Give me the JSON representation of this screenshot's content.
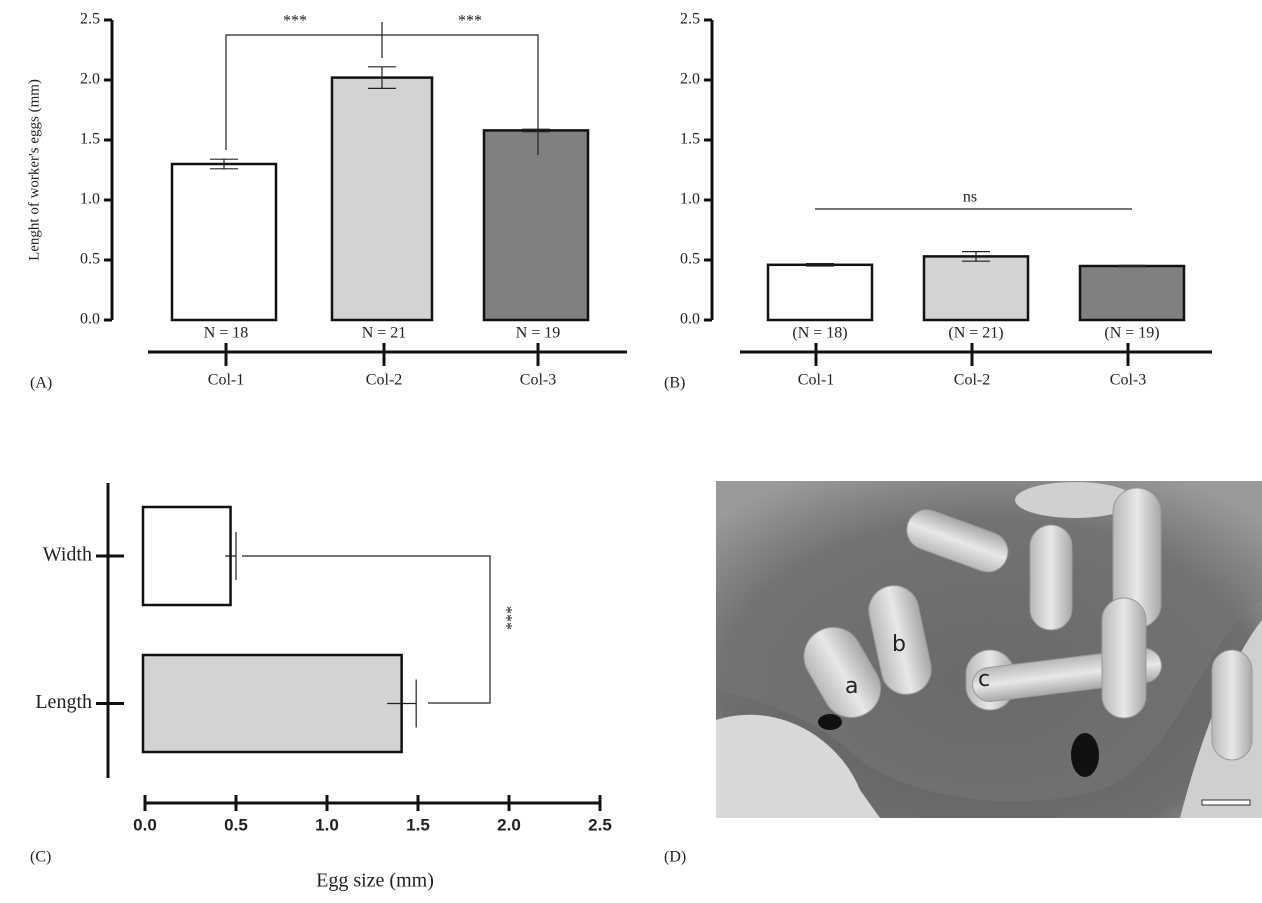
{
  "chart_data": [
    {
      "type": "bar",
      "panel_label": "(A)",
      "ylabel": "Lenght of worker's eggs (mm)",
      "categories": [
        "Col-1",
        "Col-2",
        "Col-3"
      ],
      "values": [
        1.3,
        2.02,
        1.58
      ],
      "errors": [
        0.04,
        0.09,
        0.01
      ],
      "colors": [
        "#ffffff",
        "#d3d3d3",
        "#808080"
      ],
      "n_labels": [
        "N = 18",
        "N = 21",
        "N = 19"
      ],
      "ylim": [
        0,
        2.5
      ],
      "yticks": [
        {
          "value": 0,
          "label": "0.0"
        },
        {
          "value": 0.5,
          "label": "0.5"
        },
        {
          "value": 1,
          "label": "1.0"
        },
        {
          "value": 1.5,
          "label": "1.5"
        },
        {
          "value": 2,
          "label": "2.0"
        },
        {
          "value": 2.5,
          "label": "2.5"
        }
      ],
      "annotations": [
        "***",
        "***"
      ]
    },
    {
      "type": "bar",
      "panel_label": "(B)",
      "categories": [
        "Col-1",
        "Col-2",
        "Col-3"
      ],
      "values": [
        0.46,
        0.53,
        0.45
      ],
      "errors": [
        0.01,
        0.04,
        0.005
      ],
      "colors": [
        "#ffffff",
        "#d3d3d3",
        "#808080"
      ],
      "n_labels": [
        "(N = 18)",
        "(N = 21)",
        "(N = 19)"
      ],
      "ylim": [
        0,
        2.5
      ],
      "yticks": [
        {
          "value": 0,
          "label": "0.0"
        },
        {
          "value": 0.5,
          "label": "0.5"
        },
        {
          "value": 1,
          "label": "1.0"
        },
        {
          "value": 1.5,
          "label": "1.5"
        },
        {
          "value": 2,
          "label": "2.0"
        },
        {
          "value": 2.5,
          "label": "2.5"
        }
      ],
      "annotations": [
        "ns"
      ]
    },
    {
      "type": "barh",
      "panel_label": "(C)",
      "xlabel": "Egg size (mm)",
      "categories": [
        "Width",
        "Length"
      ],
      "values": [
        0.47,
        1.41
      ],
      "errors": [
        0.03,
        0.08
      ],
      "colors": [
        "#ffffff",
        "#d3d3d3"
      ],
      "xlim": [
        0,
        2.5
      ],
      "xticks": [
        {
          "value": 0,
          "label": "0.0"
        },
        {
          "value": 0.5,
          "label": "0.5"
        },
        {
          "value": 1,
          "label": "1.0"
        },
        {
          "value": 1.5,
          "label": "1.5"
        },
        {
          "value": 2,
          "label": "2.0"
        },
        {
          "value": 2.5,
          "label": "2.5"
        }
      ],
      "annotations": [
        "***"
      ]
    }
  ],
  "photo": {
    "panel_label": "(D)",
    "labels": [
      "a",
      "b",
      "c"
    ]
  }
}
